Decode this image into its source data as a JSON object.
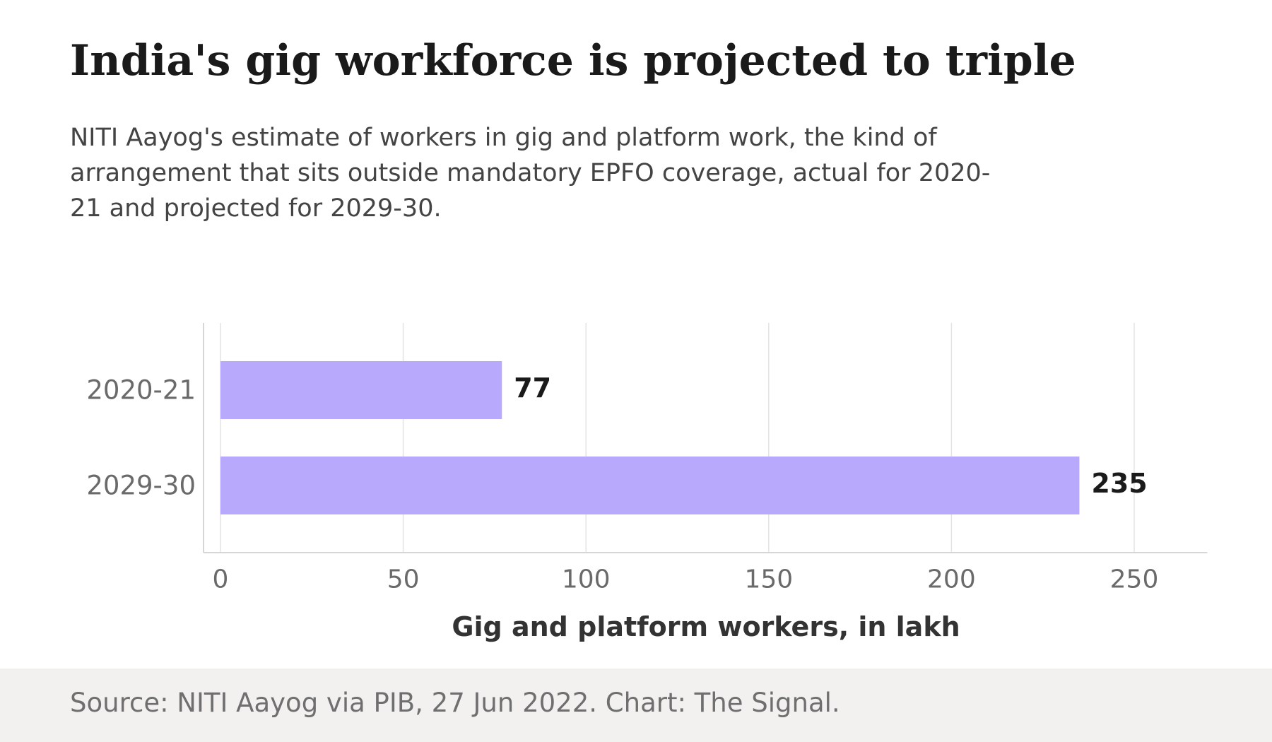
{
  "header": {
    "title": "India's gig workforce is projected to triple",
    "subtitle": "NITI Aayog's estimate of workers in gig and platform work, the kind of arrangement that sits outside mandatory EPFO coverage, actual for 2020-21 and projected for 2029-30."
  },
  "footer": {
    "source": "Source: NITI Aayog via PIB, 27 Jun 2022. Chart: The Signal."
  },
  "chart_data": {
    "type": "bar",
    "orientation": "horizontal",
    "categories": [
      "2020-21",
      "2029-30"
    ],
    "values": [
      77,
      235
    ],
    "value_labels": [
      "77",
      "235"
    ],
    "title": "India's gig workforce is projected to triple",
    "xlabel": "Gig and platform workers, in lakh",
    "ylabel": "",
    "xlim": [
      0,
      270
    ],
    "xticks": [
      0,
      50,
      100,
      150,
      200,
      250
    ],
    "grid": "vertical",
    "legend": "none",
    "colors": {
      "bar": "#b8a9fd",
      "grid": "#e3e3e3",
      "axis": "#d6d6d6",
      "tick_label": "#6a6a6a",
      "value_label": "#1a1a1a",
      "axis_title": "#333333"
    }
  }
}
